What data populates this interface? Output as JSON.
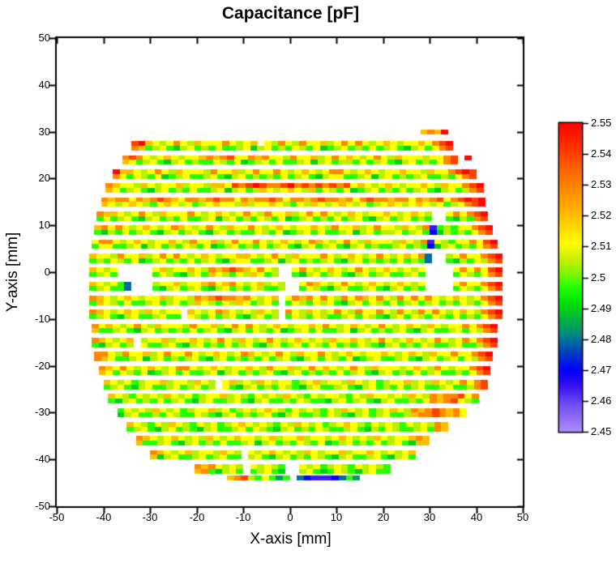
{
  "title": "Capacitance [pF]",
  "axes": {
    "x": {
      "label": "X-axis [mm]",
      "min": -50,
      "max": 50,
      "tick_labels": [
        "-50",
        "-40",
        "-30",
        "-20",
        "-10",
        "0",
        "10",
        "20",
        "30",
        "40",
        "50"
      ]
    },
    "y": {
      "label": "Y-axis [mm]",
      "min": -50,
      "max": 50,
      "tick_labels": [
        "50",
        "40",
        "30",
        "20",
        "10",
        "0",
        "-10",
        "-20",
        "-30",
        "-40",
        "-50"
      ]
    }
  },
  "colorbar": {
    "min": 2.45,
    "max": 2.55,
    "tick_labels": [
      "2.55",
      "2.54",
      "2.53",
      "2.52",
      "2.51",
      "2.5",
      "2.49",
      "2.48",
      "2.47",
      "2.46",
      "2.45"
    ]
  },
  "chart_data": {
    "type": "heatmap",
    "title": "Capacitance [pF]",
    "xlabel": "X-axis [mm]",
    "ylabel": "Y-axis [mm]",
    "units": "pF",
    "xlim": [
      -50,
      50
    ],
    "ylim": [
      -50,
      50
    ],
    "value_range": [
      2.45,
      2.55
    ],
    "grid": false,
    "legend_position": "right-colorbar",
    "cell_width_mm": 1.5,
    "subrow_height_mm": 1,
    "row_pitch_mm": 3,
    "value_key": {
      "R": 2.549,
      "r": 2.54,
      "O": 2.529,
      "o": 2.52,
      "y": 2.511,
      "l": 2.505,
      "g": 2.497,
      "G": 2.49,
      "d": 2.484,
      "t": 2.479,
      "b": 2.47,
      "B": 2.464,
      "v": 2.453
    },
    "missing_char": ".",
    "colormap_stops": [
      [
        2.45,
        "#b28aff"
      ],
      [
        2.458,
        "#7a55f2"
      ],
      [
        2.465,
        "#3311ee"
      ],
      [
        2.47,
        "#0000ff"
      ],
      [
        2.476,
        "#0043bb"
      ],
      [
        2.48,
        "#007799"
      ],
      [
        2.484,
        "#00a05c"
      ],
      [
        2.488,
        "#00c12e"
      ],
      [
        2.492,
        "#00e400"
      ],
      [
        2.497,
        "#25ff00"
      ],
      [
        2.501,
        "#7cf500"
      ],
      [
        2.506,
        "#c9ee00"
      ],
      [
        2.511,
        "#ffff00"
      ],
      [
        2.517,
        "#ffd300"
      ],
      [
        2.523,
        "#ffaa00"
      ],
      [
        2.529,
        "#ff8800"
      ],
      [
        2.535,
        "#ff6400"
      ],
      [
        2.541,
        "#ff3a00"
      ],
      [
        2.55,
        "#ff0000"
      ]
    ],
    "bands": [
      {
        "y": 30,
        "x0": 28,
        "u": "oOoR",
        "l": ""
      },
      {
        "y": 27,
        "x0": -34,
        "u": "rRoylyOyloyyyOylyo.ylOylOyyolyOyOylyoylyyoyOrR",
        "l": "OoglygGlyglgygglyGlyglgylgyGglyglgyglygGlygyOr"
      },
      {
        "y": 24,
        "x0": -36,
        "u": "OrOylyoylyyoOoOryyOoOyylOyyolyOyoylyOyloyyylyyOr.R",
        "l": "oyglygGlyglggylgyGglygygglyGlygllgyglygGlyglgyOr.."
      },
      {
        "y": 21,
        "x0": -38,
        "u": "RooylyOyloyyylOyyolyOyyOylyoylyOOylyoylyyoyyloyyOrRr",
        "l": "OygylgyGglygglygGlyglglgyglygGlyygglyGlyglglygglgyOr"
      },
      {
        "y": 18,
        "x0": -39.5,
        "u": "OoyyloylyyolyylooyrOrRrOOrROrOrOrOryoylyoylyyoyloyyOrR",
        "l": "oyglygGlyglgygglyGlygloylyoylogylgyGglyglgyglygGlyglOr"
      },
      {
        "y": 15,
        "x0": -40.5,
        "u": "OoOOyOoOrOoyOOoOrOOyOoOOrOyOOoOrOOoOyOrOOoOOyOoOryOrRrR",
        "l": "oylyoylgyoylyglyoyylolyyoylgyloylyoylyglyoylyoylyglyOrR"
      },
      {
        "y": 12,
        "x0": -41.5,
        "u": "OooylyOyloyyyOylyoylyOylOyyolyOyOylyoylyyoylyoyl..yOyOrR",
        "l": "gyglygGlyglgygglyGlyglgylgyGglyglgyglygGlyglyglg..gGlgOr"
      },
      {
        "y": 9,
        "x0": -42,
        "u": "oOyOylyoylyOoylyOyloyyOylyoylyyoylOyyolyOyyloylOBglgyyOrR",
        "l": "gGlgyglygGlyglygGlyglggylgyGglygygglyGlygllyglygbGlglgyOr"
      },
      {
        "y": 6,
        "x0": -42.5,
        "u": "yOOylyoylyyoylOyyolyOyyOylyoylyOoylyOyloyyyloylOBylgyyOyrR",
        "l": "gyygglyGlyglgylgyGglyglgyglygGlyglygGlyglgglyglgbGlyglgyOr"
      },
      {
        "y": 3,
        "x0": -43,
        "u": "oyylOyyolyOyOylyoylyyooylyOyloyyyOylyoylyOylyoyOt..lyOyyOrR",
        "l": "glgylgyGglyglgyglygGlyygglyGlyglglygGlyglglgyglgt..gGlgylOr"
      },
      {
        "y": 0,
        "x0": -43,
        "u": "oyly.....yolyyoylOoOrOoyOyl..yOylyoylyOylyoylyly....yOyOyrR",
        "l": "glyg.....gylgGlygoylgyloygl..gGlyglygGlyglygglyg....gylgyOr"
      },
      {
        "y": -3,
        "x0": -43,
        "u": "oylygt...lyyolyyoOyoOylyolyl..yOoylyOylyoylyoyly....yOyyOrR",
        "l": "glyggt...gGlyglygGlyglgylggl..gylgGlygglygGlyglg....gylgyOr"
      },
      {
        "y": -6,
        "x0": -43,
        "u": "OoylyoylyyolyylOoOrOOoOylyo.yOoOyOylOyOoyOylOyOyOylyoylyOrR",
        "l": "goylgygglyglygloylgyloyglyg.gylgylygGlygylgyglyglyglgylgyOr"
      },
      {
        "y": -9,
        "x0": -43,
        "u": "Ooylyoyloylyy.oylyOoylyloyl.OyloylyOylOyyOylOylOyOylyoylOrR",
        "l": "glygGlygglygg.ylgyglygGlygl.gylgylgglygylgGlygylgylgyglgyOr"
      },
      {
        "y": -12,
        "x0": -42.5,
        "u": "OyoylyOyloyyylOyyolyOyOylyoylyyoyOylyoylyOylyoyloylyyOyOrR",
        "l": "ogglygGlyglglgyglygGlygylgyGglygygglyGlyglglygGlygglygylOr"
      },
      {
        "y": -15,
        "x0": -42.5,
        "u": "Ooylyo.lyyolyyoylyOyloylyOylyoylyloyyoylyOylyoylyOylyOyOrR",
        "l": "gGlygl.ygglygGlyglgyglygGlyglygylgyglgylgGlyglgylgglygglOr"
      },
      {
        "y": -18,
        "x0": -42,
        "u": "OOylOyyolyOyyOylyoylyOoylyOyloyyOylyoylyyoylyoyloyyOyyOrR",
        "l": "OoygglyGlyglglygGlyglglgyglygGlygylgyGglygglygGlyglygylOr"
      },
      {
        "y": -21,
        "x0": -41,
        "u": "OoyOylyoylyOOylyoylyyoylOyyolyOyoylyOyloyyylyoylOylyyOrR",
        "l": "oygylgyGglygygglyGlyglglygGlyglglgyglygGlyglgyglygglgyOr"
      },
      {
        "y": -24,
        "x0": -40,
        "u": "oylyglyyolyyloyl.yolyloylyyglyolyyloylyglyyolyloylyOyOr",
        "l": "glygGlygglyglygl.ygGlyglgylgGlygglygGlyglgyglygglygglOr"
      },
      {
        "y": -27,
        "x0": -39,
        "u": "oylgylyloylyglyyolylgylyloylgylyylgyloyylyloylOoOOryO",
        "l": "gGlyglgyglygGlygglygGlygglgylggGlyglygGlygglgyOoOrylg"
      },
      {
        "y": -30,
        "x0": -37,
        "u": "gylyloylyglyyolyglylyoylgylylgyloylyglyoylOoOrOoOy",
        "l": "GlygglgylggylgGlyglglygGlygglgylgGlyglyggloOOrOoOy"
      },
      {
        "y": -33,
        "x0": -35,
        "u": "oylgyloylgylyglyoylylgyloylyglyoylgylylgylylOo",
        "l": "glygGlyglgGlygglygylgGlyglgylgglygGlgylgglygOo"
      },
      {
        "y": -36,
        "x0": -33,
        "u": "OoylyoylyloylyoyylyolyyolyylyoylyloylyyoOo",
        "l": "ogglygGlyglgygglyGlyglgylgyGglyglgyglygGoo"
      },
      {
        "y": -39,
        "x0": -30,
        "u": "Ooylyolyyloyl.ylyoylyloylyyolyyoylylyo",
        "l": "oGlygglyglygg.lygGlyglgylgGlygglygGlyg"
      },
      {
        "y": -42,
        "x0": -20.5,
        "u": "OoOylyl.ylylg..ylyglylgylylg",
        "l": "oOgGlyg.glygG..lygGgylgGlygg"
      },
      {
        "y": -44,
        "x0": -13.5,
        "u": "oOrlgygdg.tbBBBbtgd",
        "l": ""
      }
    ]
  }
}
